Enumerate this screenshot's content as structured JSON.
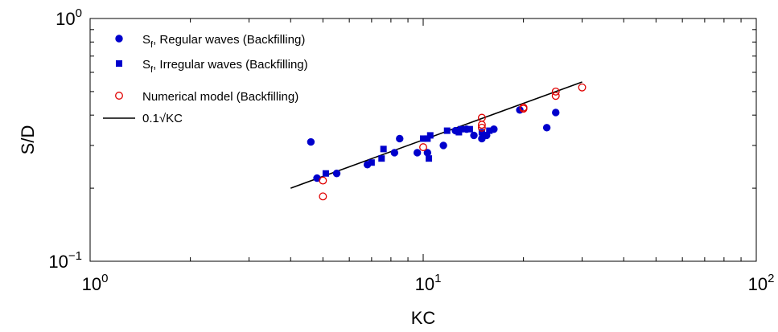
{
  "chart_data": {
    "type": "scatter",
    "xlabel": "KC",
    "ylabel": "S/D",
    "xscale": "log",
    "yscale": "log",
    "xlim": [
      1,
      100
    ],
    "ylim": [
      0.1,
      1
    ],
    "grid": false,
    "legend_position": "top-left",
    "x_ticks": [
      {
        "value": 1,
        "base": "10",
        "exp": "0"
      },
      {
        "value": 10,
        "base": "10",
        "exp": "1"
      },
      {
        "value": 100,
        "base": "10",
        "exp": "2"
      }
    ],
    "y_ticks": [
      {
        "value": 0.1,
        "base": "10",
        "exp": "−1"
      },
      {
        "value": 1,
        "base": "10",
        "exp": "0"
      }
    ],
    "series": [
      {
        "name": "S_f, Regular waves (Backfilling)",
        "legend": {
          "pre": "S",
          "sub": "f",
          "post": ", Regular waves (Backfilling)"
        },
        "marker": "filled-circle",
        "color": "#0000CC",
        "points": [
          [
            4.6,
            0.31
          ],
          [
            4.8,
            0.22
          ],
          [
            5.5,
            0.23
          ],
          [
            6.8,
            0.25
          ],
          [
            8.2,
            0.28
          ],
          [
            8.5,
            0.32
          ],
          [
            9.6,
            0.28
          ],
          [
            10.3,
            0.28
          ],
          [
            11.5,
            0.3
          ],
          [
            12.5,
            0.345
          ],
          [
            13.5,
            0.35
          ],
          [
            14.2,
            0.33
          ],
          [
            15.0,
            0.32
          ],
          [
            15.5,
            0.33
          ],
          [
            16.3,
            0.35
          ],
          [
            19.5,
            0.42
          ],
          [
            23.5,
            0.355
          ],
          [
            25.0,
            0.41
          ]
        ]
      },
      {
        "name": "S_f, Irregular waves (Backfilling)",
        "legend": {
          "pre": "S",
          "sub": "f",
          "post": ", Irregular waves (Backfilling)"
        },
        "marker": "filled-square",
        "color": "#0000CC",
        "points": [
          [
            5.1,
            0.23
          ],
          [
            7.0,
            0.255
          ],
          [
            7.5,
            0.265
          ],
          [
            7.6,
            0.29
          ],
          [
            10.0,
            0.32
          ],
          [
            10.3,
            0.32
          ],
          [
            10.5,
            0.33
          ],
          [
            10.4,
            0.265
          ],
          [
            11.8,
            0.345
          ],
          [
            12.8,
            0.34
          ],
          [
            13.0,
            0.35
          ],
          [
            13.8,
            0.35
          ],
          [
            15.0,
            0.34
          ],
          [
            15.8,
            0.345
          ]
        ]
      },
      {
        "name": "Numerical model (Backfilling)",
        "legend": {
          "pre": "Numerical model (Backfilling)",
          "sub": "",
          "post": ""
        },
        "marker": "open-circle",
        "color": "#E00000",
        "points": [
          [
            5.0,
            0.215
          ],
          [
            5.0,
            0.185
          ],
          [
            10.0,
            0.295
          ],
          [
            15.0,
            0.39
          ],
          [
            15.0,
            0.365
          ],
          [
            15.0,
            0.355
          ],
          [
            20.0,
            0.43
          ],
          [
            20.0,
            0.425
          ],
          [
            25.0,
            0.5
          ],
          [
            25.0,
            0.48
          ],
          [
            30.0,
            0.52
          ]
        ]
      }
    ],
    "fit_line": {
      "name": "0.1√KC",
      "color": "#000000",
      "coefficient": 0.1,
      "exponent": 0.5,
      "x_range": [
        4,
        30
      ]
    }
  }
}
